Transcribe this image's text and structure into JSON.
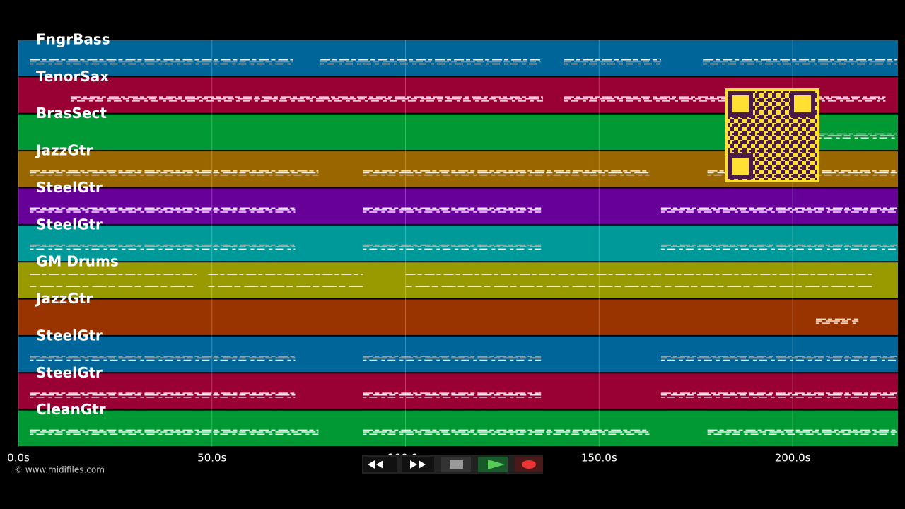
{
  "chart_data": {
    "type": "pianoroll",
    "xlim": [
      0,
      227.2
    ],
    "xticks": [
      {
        "value": 0,
        "label": "0.0s"
      },
      {
        "value": 50,
        "label": "50.0s"
      },
      {
        "value": 100,
        "label": "100.0s"
      },
      {
        "value": 150,
        "label": "150.0s"
      },
      {
        "value": 200,
        "label": "200.0s"
      }
    ],
    "grid": true,
    "tracks": [
      {
        "name": "FngrBass",
        "color": "#006699",
        "segments": [
          [
            3,
            71
          ],
          [
            78,
            135
          ],
          [
            141,
            166
          ],
          [
            177,
            227
          ]
        ]
      },
      {
        "name": "TenorSax",
        "color": "#990033",
        "segments": [
          [
            13.5,
            135.5
          ],
          [
            141,
            224
          ]
        ]
      },
      {
        "name": "BrasSect",
        "color": "#009933",
        "segments": [
          [
            206.5,
            227
          ]
        ]
      },
      {
        "name": "JazzGtr",
        "color": "#996600",
        "segments": [
          [
            3,
            77.5
          ],
          [
            89,
            163
          ],
          [
            178,
            227
          ]
        ]
      },
      {
        "name": "SteelGtr",
        "color": "#660099",
        "segments": [
          [
            3,
            71.5
          ],
          [
            89,
            135
          ],
          [
            166,
            227
          ]
        ]
      },
      {
        "name": "SteelGtr",
        "color": "#009999",
        "segments": [
          [
            3,
            71.5
          ],
          [
            89,
            135
          ],
          [
            166,
            227
          ]
        ]
      },
      {
        "name": "GM Drums",
        "color": "#999900",
        "segments": [
          [
            3,
            46
          ],
          [
            49,
            89
          ],
          [
            100,
            166
          ],
          [
            167,
            221
          ]
        ]
      },
      {
        "name": "JazzGtr",
        "color": "#993300",
        "segments": [
          [
            206,
            217
          ]
        ]
      },
      {
        "name": "SteelGtr",
        "color": "#006699",
        "segments": [
          [
            3,
            71.5
          ],
          [
            89,
            135
          ],
          [
            166,
            227
          ]
        ]
      },
      {
        "name": "SteelGtr",
        "color": "#990033",
        "segments": [
          [
            3,
            71.5
          ],
          [
            89,
            135
          ],
          [
            166,
            227
          ]
        ]
      },
      {
        "name": "CleanGtr",
        "color": "#009933",
        "segments": [
          [
            3,
            77.5
          ],
          [
            89,
            163
          ],
          [
            178,
            227
          ]
        ]
      }
    ]
  },
  "footer": {
    "copyright": "© www.midifiles.com"
  }
}
